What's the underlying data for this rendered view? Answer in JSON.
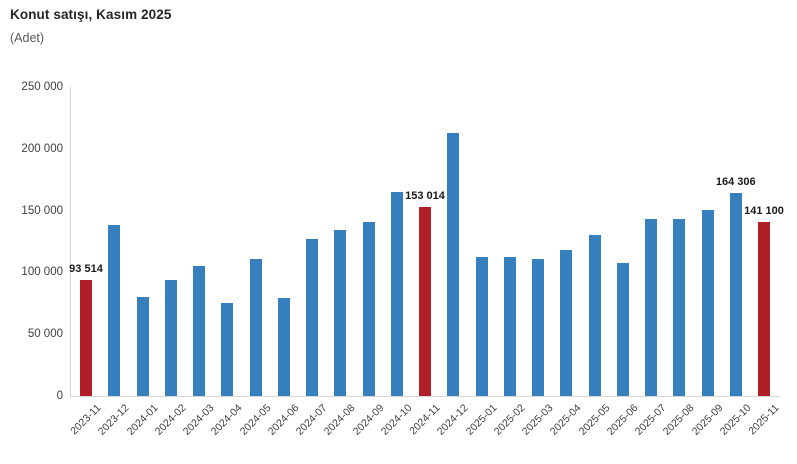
{
  "chart_data": {
    "type": "bar",
    "title": "Konut satışı, Kasım 2025",
    "subtitle": "(Adet)",
    "categories": [
      "2023-11",
      "2023-12",
      "2024-01",
      "2024-02",
      "2024-03",
      "2024-04",
      "2024-05",
      "2024-06",
      "2024-07",
      "2024-08",
      "2024-09",
      "2024-10",
      "2024-11",
      "2024-12",
      "2025-01",
      "2025-02",
      "2025-03",
      "2025-04",
      "2025-05",
      "2025-06",
      "2025-07",
      "2025-08",
      "2025-09",
      "2025-10",
      "2025-11"
    ],
    "values": [
      93514,
      138577,
      80308,
      93902,
      105394,
      75569,
      110588,
      79313,
      127088,
      134155,
      140919,
      165138,
      153014,
      212637,
      112173,
      112818,
      110795,
      118359,
      130025,
      107723,
      142858,
      143319,
      150738,
      164306,
      141100
    ],
    "highlight_indices": [
      0,
      12,
      24
    ],
    "data_labels": [
      {
        "index": 0,
        "text": "93 514"
      },
      {
        "index": 12,
        "text": "153 014"
      },
      {
        "index": 23,
        "text": "164 306"
      },
      {
        "index": 24,
        "text": "141 100"
      }
    ],
    "xlabel": "",
    "ylabel": "",
    "ylim": [
      0,
      250000
    ],
    "yticks": [
      0,
      50000,
      100000,
      150000,
      200000,
      250000
    ],
    "ytick_labels": [
      "0",
      "50 000",
      "100 000",
      "150 000",
      "200 000",
      "250 000"
    ],
    "grid": false,
    "legend": false,
    "colors": {
      "bar_blue": "#3580bd",
      "bar_red": "#b01e28",
      "axis_line": "#d6d6d6",
      "title_text": "#262626",
      "subtitle_text": "#595959",
      "axis_text": "#404040",
      "data_label_text": "#1a1a1a",
      "background": "#ffffff"
    }
  }
}
